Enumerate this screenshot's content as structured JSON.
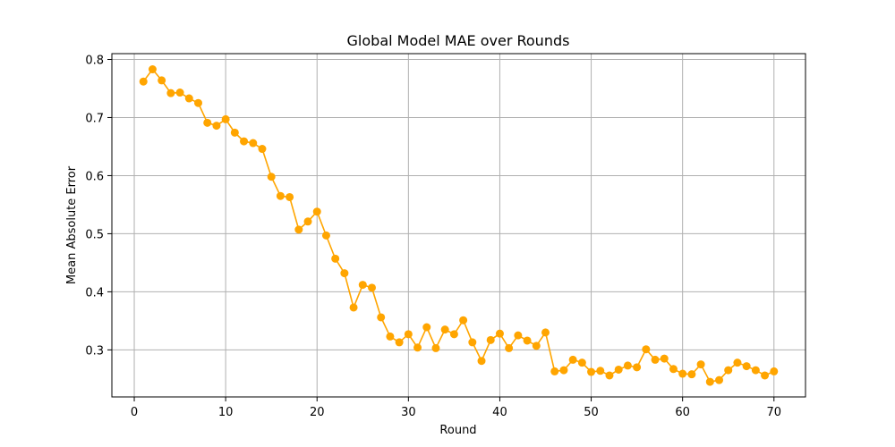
{
  "chart_data": {
    "type": "line",
    "title": "Global Model MAE over Rounds",
    "xlabel": "Round",
    "ylabel": "Mean Absolute Error",
    "xlim": [
      -2.45,
      73.45
    ],
    "ylim": [
      0.219,
      0.81
    ],
    "xticks": [
      0,
      10,
      20,
      30,
      40,
      50,
      60,
      70
    ],
    "yticks": [
      0.3,
      0.4,
      0.5,
      0.6,
      0.7,
      0.8
    ],
    "xtick_labels": [
      "0",
      "10",
      "20",
      "30",
      "40",
      "50",
      "60",
      "70"
    ],
    "ytick_labels": [
      "0.3",
      "0.4",
      "0.5",
      "0.6",
      "0.7",
      "0.8"
    ],
    "grid": true,
    "marker": "circle",
    "color": "#FFA500",
    "x": [
      1,
      2,
      3,
      4,
      5,
      6,
      7,
      8,
      9,
      10,
      11,
      12,
      13,
      14,
      15,
      16,
      17,
      18,
      19,
      20,
      21,
      22,
      23,
      24,
      25,
      26,
      27,
      28,
      29,
      30,
      31,
      32,
      33,
      34,
      35,
      36,
      37,
      38,
      39,
      40,
      41,
      42,
      43,
      44,
      45,
      46,
      47,
      48,
      49,
      50,
      51,
      52,
      53,
      54,
      55,
      56,
      57,
      58,
      59,
      60,
      61,
      62,
      63,
      64,
      65,
      66,
      67,
      68,
      69,
      70
    ],
    "y": [
      0.762,
      0.783,
      0.764,
      0.742,
      0.743,
      0.733,
      0.725,
      0.691,
      0.686,
      0.697,
      0.674,
      0.659,
      0.656,
      0.646,
      0.598,
      0.565,
      0.563,
      0.507,
      0.521,
      0.538,
      0.497,
      0.457,
      0.432,
      0.373,
      0.412,
      0.407,
      0.356,
      0.323,
      0.313,
      0.327,
      0.304,
      0.339,
      0.303,
      0.335,
      0.327,
      0.351,
      0.313,
      0.281,
      0.317,
      0.328,
      0.303,
      0.325,
      0.316,
      0.307,
      0.33,
      0.263,
      0.265,
      0.283,
      0.278,
      0.262,
      0.264,
      0.256,
      0.266,
      0.273,
      0.27,
      0.301,
      0.283,
      0.285,
      0.267,
      0.259,
      0.258,
      0.275,
      0.245,
      0.248,
      0.265,
      0.278,
      0.272,
      0.265,
      0.256,
      0.263
    ]
  }
}
